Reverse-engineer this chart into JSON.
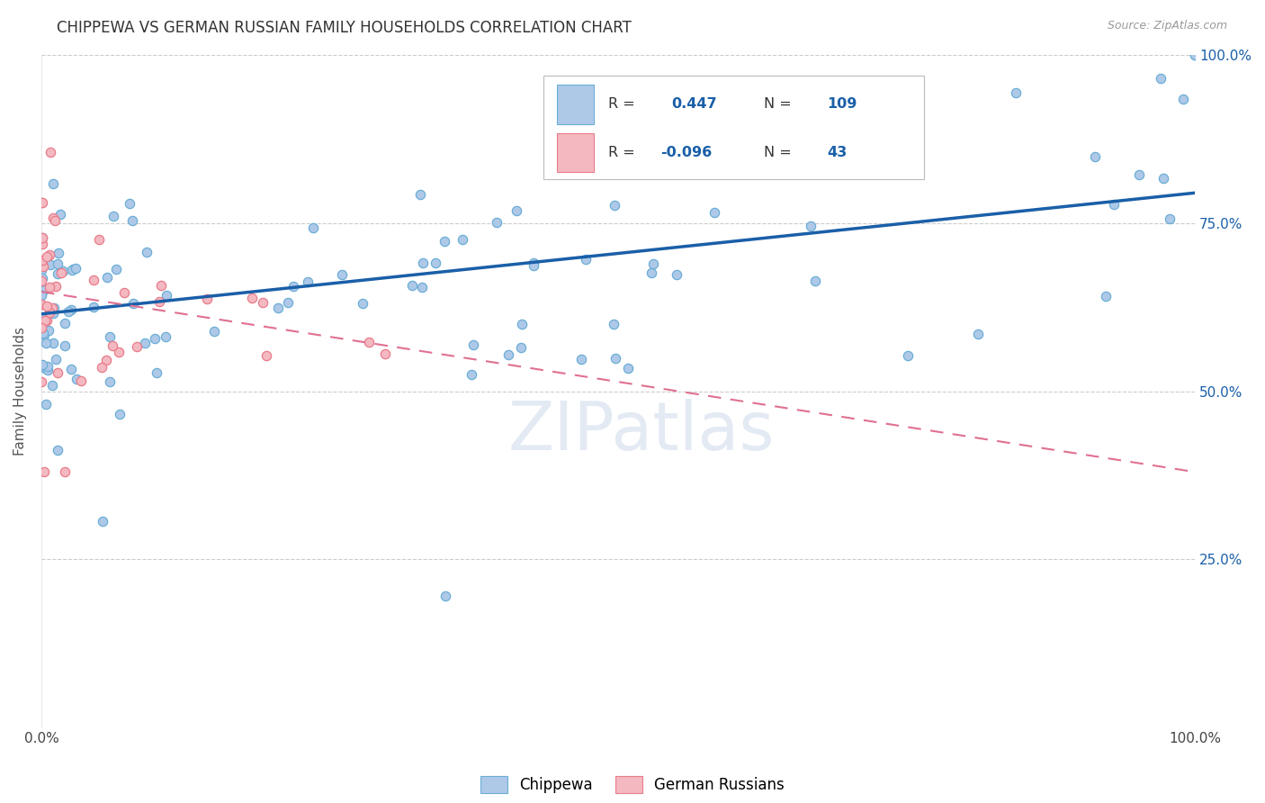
{
  "title": "CHIPPEWA VS GERMAN RUSSIAN FAMILY HOUSEHOLDS CORRELATION CHART",
  "source": "Source: ZipAtlas.com",
  "ylabel": "Family Households",
  "watermark": "ZIPatlas",
  "xmin": 0.0,
  "xmax": 1.0,
  "ymin": 0.0,
  "ymax": 1.0,
  "xtick_positions": [
    0.0,
    0.25,
    0.5,
    0.75,
    1.0
  ],
  "xtick_labels": [
    "0.0%",
    "",
    "",
    "",
    "100.0%"
  ],
  "ytick_positions": [
    0.0,
    0.25,
    0.5,
    0.75,
    1.0
  ],
  "ytick_labels_right": [
    "",
    "25.0%",
    "50.0%",
    "75.0%",
    "100.0%"
  ],
  "chippewa_color": "#aec8e8",
  "chippewa_edge_color": "#6baed6",
  "german_color": "#f4b8c1",
  "german_edge_color": "#e87c8a",
  "trend_chippewa_color": "#1a5fa8",
  "trend_german_color": "#e07090",
  "R_chippewa": 0.447,
  "N_chippewa": 109,
  "R_german": -0.096,
  "N_german": 43,
  "trend_chip_y0": 0.615,
  "trend_chip_y1": 0.795,
  "trend_ger_y0": 0.648,
  "trend_ger_y1": 0.38,
  "background_color": "#ffffff",
  "grid_color": "#cccccc",
  "title_fontsize": 12,
  "axis_label_fontsize": 11,
  "tick_fontsize": 11,
  "marker_size": 55,
  "figsize": [
    14.06,
    8.92
  ],
  "dpi": 100
}
